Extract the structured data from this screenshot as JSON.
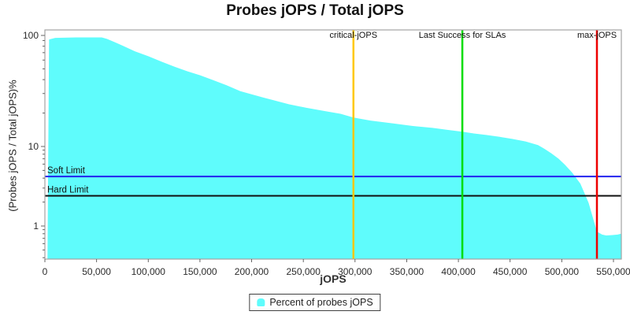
{
  "chart_data": {
    "type": "area",
    "title": "Probes jOPS / Total jOPS",
    "xlabel": "jOPS",
    "ylabel": "(Probes jOPS / Total jOPS)%",
    "x_axis": {
      "min": 0,
      "max": 557500,
      "tick_values": [
        0,
        50000,
        100000,
        150000,
        200000,
        250000,
        300000,
        350000,
        400000,
        450000,
        500000,
        550000
      ],
      "grid": false
    },
    "y_axis": {
      "scale": "log",
      "tick_values": [
        1,
        10,
        100
      ],
      "minor_tick_values": [
        0.4,
        0.5,
        0.6,
        0.7,
        0.8,
        0.9,
        2,
        3,
        4,
        5,
        6,
        7,
        8,
        9,
        20,
        30,
        40,
        50,
        60,
        70,
        80,
        90
      ],
      "range_bottom": 0.38,
      "range_top": 112,
      "grid": false
    },
    "series": [
      {
        "name": "Percent of probes jOPS",
        "color": "#5ffcfc",
        "points": [
          [
            2500,
            0.38
          ],
          [
            4000,
            92
          ],
          [
            10000,
            95
          ],
          [
            30000,
            96
          ],
          [
            55000,
            96
          ],
          [
            60000,
            93
          ],
          [
            67000,
            87.5
          ],
          [
            75000,
            81
          ],
          [
            87000,
            72
          ],
          [
            100000,
            65
          ],
          [
            113000,
            58
          ],
          [
            126000,
            52
          ],
          [
            138000,
            47.5
          ],
          [
            151000,
            43.5
          ],
          [
            163000,
            39.5
          ],
          [
            176000,
            35.5
          ],
          [
            189000,
            31.5
          ],
          [
            200000,
            29.5
          ],
          [
            212000,
            27.5
          ],
          [
            224000,
            25.7
          ],
          [
            236000,
            24
          ],
          [
            253000,
            22.3
          ],
          [
            270000,
            20.9
          ],
          [
            286000,
            19.7
          ],
          [
            298500,
            18.2
          ],
          [
            315000,
            17.1
          ],
          [
            337000,
            16.1
          ],
          [
            356000,
            15.3
          ],
          [
            375000,
            14.7
          ],
          [
            390000,
            14.1
          ],
          [
            403800,
            13.6
          ],
          [
            415000,
            13.1
          ],
          [
            427000,
            12.7
          ],
          [
            440000,
            12.2
          ],
          [
            452000,
            11.7
          ],
          [
            465000,
            11.1
          ],
          [
            477000,
            10.3
          ],
          [
            483000,
            9.4
          ],
          [
            490000,
            8.2
          ],
          [
            497000,
            7.0
          ],
          [
            503000,
            5.9
          ],
          [
            510000,
            4.7
          ],
          [
            518000,
            3.4
          ],
          [
            526000,
            1.95
          ],
          [
            529500,
            1.35
          ],
          [
            534000,
            0.85
          ],
          [
            539000,
            0.78
          ],
          [
            543000,
            0.76
          ],
          [
            549000,
            0.77
          ],
          [
            554000,
            0.78
          ],
          [
            557500,
            0.8
          ]
        ]
      }
    ],
    "vlines": [
      {
        "label": "critical-jOPS",
        "x": 298500,
        "color": "#ffc800"
      },
      {
        "label": "Last Success for SLAs",
        "x": 403800,
        "color": "#00dd00"
      },
      {
        "label": "max-jOPS",
        "x": 534000,
        "color": "#ee0000"
      }
    ],
    "hlines": [
      {
        "label": "Soft Limit",
        "y": 4.2,
        "color": "#2222ee"
      },
      {
        "label": "Hard Limit",
        "y": 2.4,
        "color": "#111111"
      }
    ],
    "legend_position": "bottom"
  },
  "legend": {
    "items": [
      {
        "label": "Percent of probes jOPS",
        "color": "#5ffcfc"
      }
    ]
  },
  "colors": {
    "frame": "#a3a3a3",
    "tick": "#666666",
    "tick_label": "#2b2b2b",
    "annotation_label": "#111111"
  }
}
